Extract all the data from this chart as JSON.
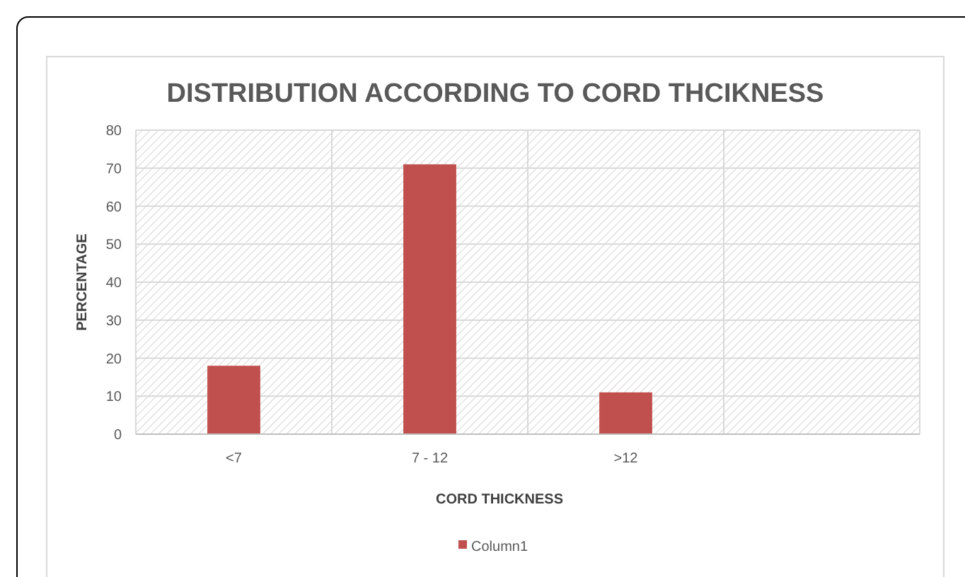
{
  "chart_data": {
    "type": "bar",
    "title": "DISTRIBUTION ACCORDING TO CORD THCIKNESS",
    "xlabel": "CORD THICKNESS",
    "ylabel": "PERCENTAGE",
    "categories": [
      "<7",
      "7 - 12",
      ">12",
      null
    ],
    "series": [
      {
        "name": "Column1",
        "color": "#c0504d",
        "values": [
          18,
          71,
          11,
          null
        ]
      }
    ],
    "ylim": [
      0,
      80
    ],
    "yticks": [
      0,
      10,
      20,
      30,
      40,
      50,
      60,
      70,
      80
    ],
    "grid": true,
    "legend": "bottom"
  }
}
